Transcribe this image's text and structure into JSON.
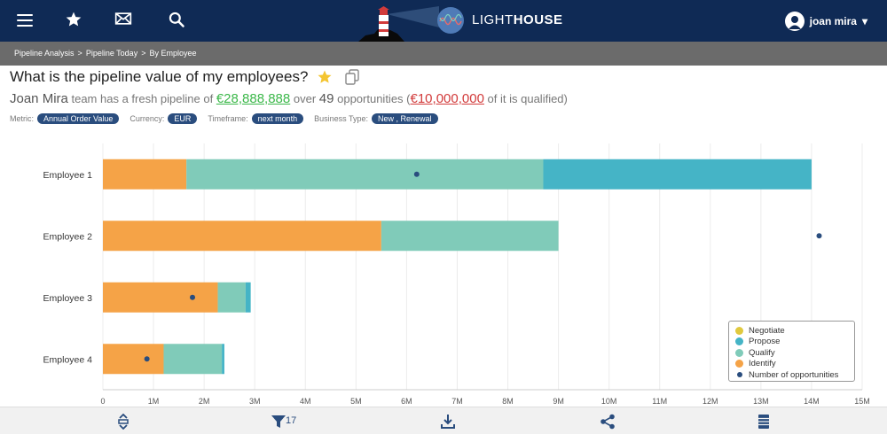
{
  "nav": {
    "brand_light": "LIGHT",
    "brand_bold": "HOUSE",
    "user_name": "joan mira",
    "user_caret": "▾"
  },
  "breadcrumb": [
    "Pipeline Analysis",
    "Pipeline Today",
    "By Employee"
  ],
  "breadcrumb_sep": ">",
  "headline": {
    "question": "What is the pipeline value of my employees?"
  },
  "summary": {
    "name": "Joan Mira",
    "t1": "team has a fresh pipeline of",
    "pipeline_value": "€28,888,888",
    "t2": "over",
    "opportunities": "49",
    "t3": "opportunities (",
    "qualified_value": "€10,000,000",
    "t4": "of it is qualified)"
  },
  "filters": [
    {
      "label": "Metric:",
      "value": "Annual Order Value"
    },
    {
      "label": "Currency:",
      "value": "EUR"
    },
    {
      "label": "Timeframe:",
      "value": "next month"
    },
    {
      "label": "Business Type:",
      "value": "New , Renewal"
    }
  ],
  "chart_data": {
    "type": "bar",
    "orientation": "horizontal",
    "stacked": true,
    "categories": [
      "Employee 1",
      "Employee 2",
      "Employee 3",
      "Employee 4"
    ],
    "series": [
      {
        "name": "Identify",
        "color": "#f5a347",
        "values": [
          1.65,
          5.5,
          2.27,
          1.2
        ]
      },
      {
        "name": "Qualify",
        "color": "#80cbb9",
        "values": [
          7.05,
          3.5,
          0.55,
          1.15
        ]
      },
      {
        "name": "Propose",
        "color": "#45b4c6",
        "values": [
          5.3,
          0,
          0.1,
          0.05
        ]
      },
      {
        "name": "Negotiate",
        "color": "#e0c93e",
        "values": [
          0,
          0,
          0,
          0
        ]
      }
    ],
    "opportunities_marker": {
      "name": "Number of opportunities",
      "color": "#2a4d7e",
      "values": [
        6.2,
        14.15,
        1.77,
        0.87
      ]
    },
    "xlim": [
      0,
      15
    ],
    "xticks": [
      "0",
      "1M",
      "2M",
      "3M",
      "4M",
      "5M",
      "6M",
      "7M",
      "8M",
      "9M",
      "10M",
      "11M",
      "12M",
      "13M",
      "14M",
      "15M"
    ],
    "legend_order": [
      "Negotiate",
      "Propose",
      "Qualify",
      "Identify",
      "Number of opportunities"
    ],
    "legend_position": "bottom-right",
    "grid": "vertical"
  },
  "footer": {
    "filter_count": "17"
  }
}
